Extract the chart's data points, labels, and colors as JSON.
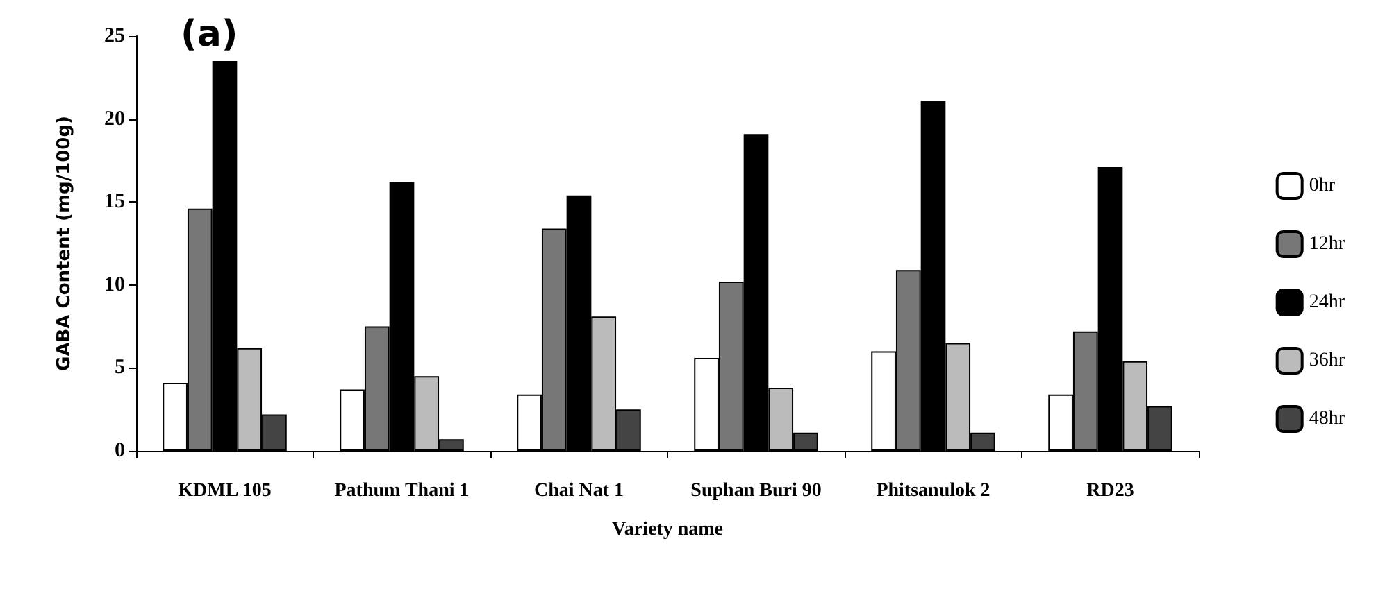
{
  "chart_data": {
    "type": "bar",
    "xlabel": "Variety name",
    "ylabel": "GABA Content (mg/100g)",
    "annotations": [
      "(a)"
    ],
    "categories": [
      "KDML 105",
      "Pathum Thani 1",
      "Chai Nat 1",
      "Suphan Buri 90",
      "Phitsanulok 2",
      "RD23"
    ],
    "series": [
      {
        "name": "0hr",
        "color": "#ffffff",
        "values": [
          4.1,
          3.7,
          3.4,
          5.6,
          6.0,
          3.4
        ]
      },
      {
        "name": "12hr",
        "color": "#777777",
        "values": [
          14.6,
          7.5,
          13.4,
          10.2,
          10.9,
          7.2
        ]
      },
      {
        "name": "24hr",
        "color": "#000000",
        "values": [
          23.5,
          16.2,
          15.4,
          19.1,
          21.1,
          17.1
        ]
      },
      {
        "name": "36hr",
        "color": "#bbbbbb",
        "values": [
          6.2,
          4.5,
          8.1,
          3.8,
          6.5,
          5.4
        ]
      },
      {
        "name": "48hr",
        "color": "#444444",
        "values": [
          2.2,
          0.7,
          2.5,
          1.1,
          1.1,
          2.7
        ]
      }
    ],
    "ylim": [
      0,
      25
    ],
    "yticks": [
      0,
      5,
      10,
      15,
      20,
      25
    ],
    "grid": false,
    "legend": "right"
  }
}
